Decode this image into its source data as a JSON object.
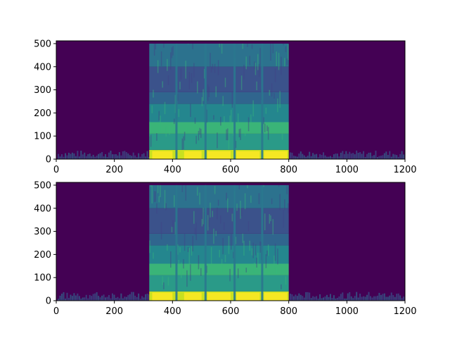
{
  "chart_data": [
    {
      "type": "heatmap",
      "xlim": [
        0,
        1200
      ],
      "ylim": [
        0,
        512
      ],
      "xticks": [
        0,
        200,
        400,
        600,
        800,
        1000,
        1200
      ],
      "yticks": [
        0,
        100,
        200,
        300,
        400,
        500
      ],
      "colormap": "viridis",
      "background_color": "#440154",
      "speech_segment": [
        320,
        800
      ],
      "vertical_gaps": [
        410,
        510,
        610,
        705
      ],
      "bands": [
        {
          "y": [
            0,
            40
          ],
          "color": "#c8e020"
        },
        {
          "y": [
            40,
            110
          ],
          "color": "#2a9a88"
        },
        {
          "y": [
            110,
            160
          ],
          "color": "#3ab478"
        },
        {
          "y": [
            160,
            240
          ],
          "color": "#24868e"
        },
        {
          "y": [
            240,
            290
          ],
          "color": "#30658e"
        },
        {
          "y": [
            290,
            400
          ],
          "color": "#3b528b"
        },
        {
          "y": [
            400,
            500
          ],
          "color": "#2c728e"
        }
      ]
    },
    {
      "type": "heatmap",
      "xlim": [
        0,
        1200
      ],
      "ylim": [
        0,
        512
      ],
      "xticks": [
        0,
        200,
        400,
        600,
        800,
        1000,
        1200
      ],
      "yticks": [
        0,
        100,
        200,
        300,
        400,
        500
      ],
      "colormap": "viridis",
      "background_color": "#440154",
      "speech_segment": [
        320,
        800
      ],
      "vertical_gaps": [
        410,
        510,
        610,
        705
      ],
      "bands": [
        {
          "y": [
            0,
            40
          ],
          "color": "#c8e020"
        },
        {
          "y": [
            40,
            110
          ],
          "color": "#2a9a88"
        },
        {
          "y": [
            110,
            160
          ],
          "color": "#3ab478"
        },
        {
          "y": [
            160,
            240
          ],
          "color": "#24868e"
        },
        {
          "y": [
            240,
            290
          ],
          "color": "#30658e"
        },
        {
          "y": [
            290,
            400
          ],
          "color": "#3b528b"
        },
        {
          "y": [
            400,
            500
          ],
          "color": "#2c728e"
        }
      ]
    }
  ]
}
